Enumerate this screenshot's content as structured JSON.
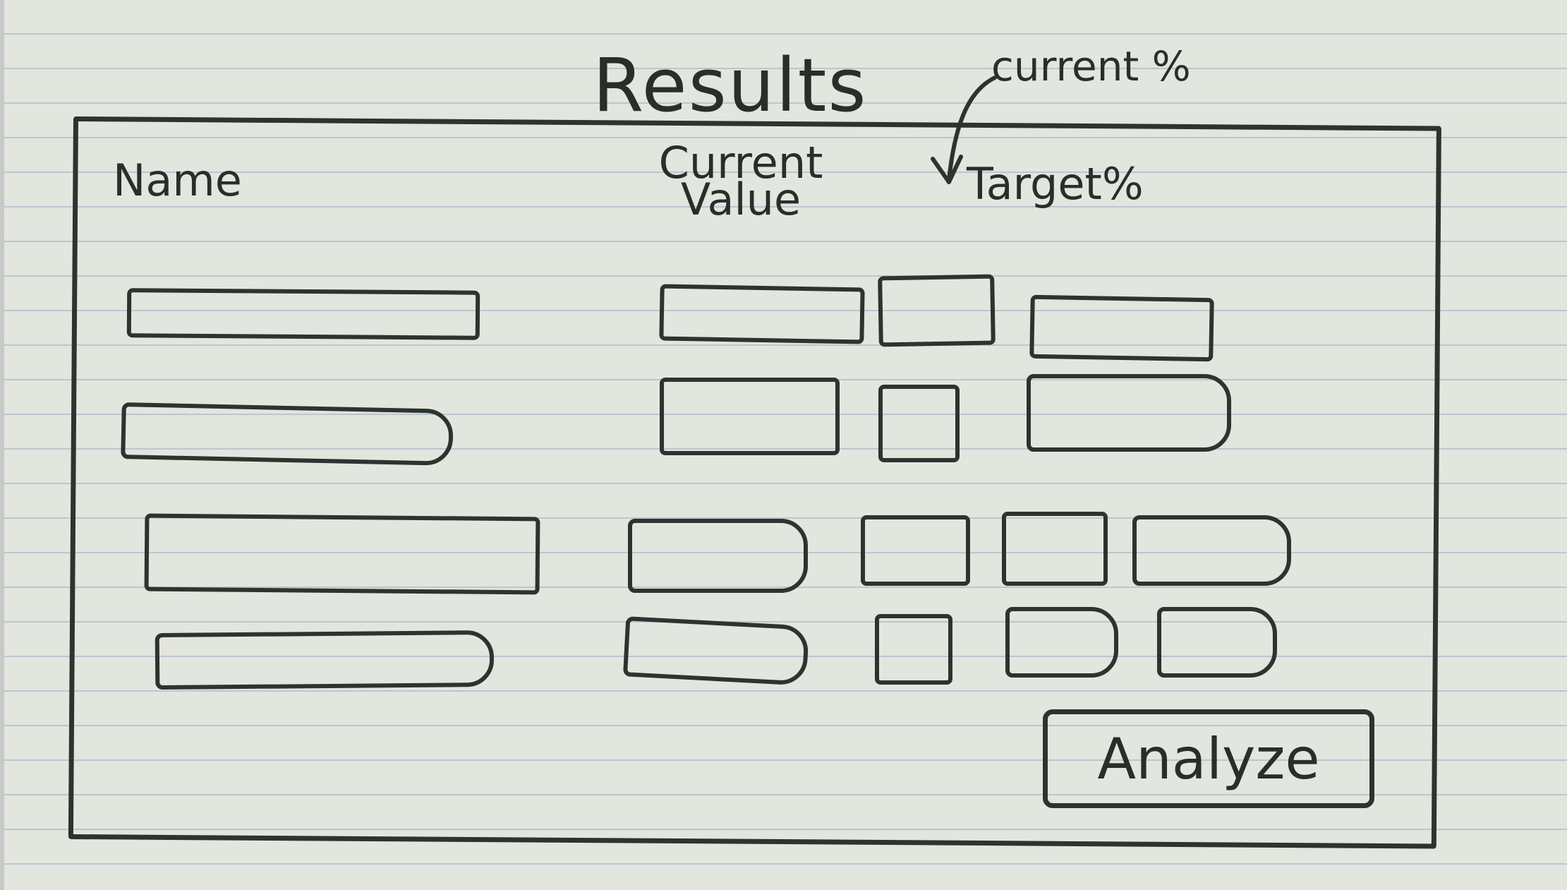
{
  "header": {
    "title": "Results",
    "annotation": "current %"
  },
  "columns": {
    "name": "Name",
    "current_value_line1": "Current",
    "current_value_line2": "Value",
    "target": "Target%"
  },
  "actions": {
    "analyze_label": "Analyze"
  },
  "colors": {
    "ink": "#2e332e",
    "paper": "#e2e6df",
    "rule": "#bcc6cf"
  }
}
